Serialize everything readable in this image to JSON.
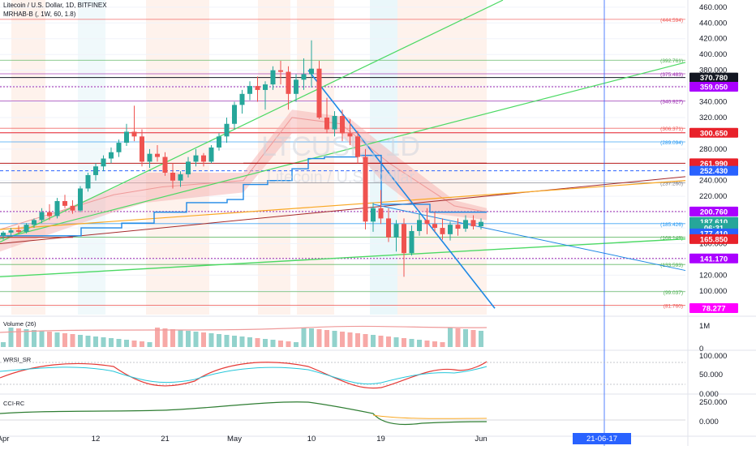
{
  "header": {
    "symbol_line": "Litecoin / U.S. Dollar, 1D, BITFINEX",
    "indicator_line": "MRHAB-B (, 1W, 60, 1.8)"
  },
  "watermark": {
    "ticker": "LTCUSD, 1D",
    "name": "Litecoin / U.S. Dollar"
  },
  "price_axis": {
    "ticks": [
      "460.000",
      "440.000",
      "420.000",
      "400.000",
      "380.000",
      "360.000",
      "340.000",
      "320.000",
      "300.000",
      "280.000",
      "260.000",
      "240.000",
      "220.000",
      "200.000",
      "180.000",
      "160.000",
      "140.000",
      "120.000",
      "100.000",
      "80.000"
    ],
    "badges": [
      {
        "text": "370.780",
        "bg": "#131722",
        "fg": "#ffffff",
        "value": 370.78
      },
      {
        "text": "359.050",
        "bg": "#aa00ff",
        "fg": "#ffffff",
        "value": 359.05
      },
      {
        "text": "300.650",
        "bg": "#e8212a",
        "fg": "#ffffff",
        "value": 300.65
      },
      {
        "text": "261.990",
        "bg": "#e8212a",
        "fg": "#ffffff",
        "value": 261.99
      },
      {
        "text": "252.430",
        "bg": "#2962ff",
        "fg": "#ffffff",
        "value": 252.43
      },
      {
        "text": "200.760",
        "bg": "#aa00ff",
        "fg": "#ffffff",
        "value": 200.76
      },
      {
        "text": "187.610",
        "bg": "#26a69a",
        "fg": "#ffffff",
        "value": 187.61
      },
      {
        "text": "06:31",
        "bg": "#26a69a",
        "fg": "#ffffff",
        "value": 180.0
      },
      {
        "text": "177.410",
        "bg": "#2962ff",
        "fg": "#ffffff",
        "value": 173.0
      },
      {
        "text": "165.850",
        "bg": "#e8212a",
        "fg": "#ffffff",
        "value": 165.85
      },
      {
        "text": "141.170",
        "bg": "#aa00ff",
        "fg": "#ffffff",
        "value": 141.17
      },
      {
        "text": "78.277",
        "bg": "#ff00ff",
        "fg": "#ffffff",
        "value": 78.277
      }
    ]
  },
  "fib_levels": [
    {
      "label": "(444.594)",
      "value": 444.594,
      "color": "#ef5350"
    },
    {
      "label": "(392.761)",
      "value": 392.761,
      "color": "#4caf50"
    },
    {
      "label": "(375.483)",
      "value": 375.483,
      "color": "#9c27b0"
    },
    {
      "label": "(340.927)",
      "value": 340.927,
      "color": "#9c27b0"
    },
    {
      "label": "(306.371)",
      "value": 306.371,
      "color": "#ef5350"
    },
    {
      "label": "(289.094)",
      "value": 289.094,
      "color": "#2196f3"
    },
    {
      "label": "(237.260)",
      "value": 237.26,
      "color": "#787b86"
    },
    {
      "label": "(185.426)",
      "value": 185.426,
      "color": "#2196f3"
    },
    {
      "label": "(168.149)",
      "value": 168.149,
      "color": "#4caf50"
    },
    {
      "label": "(133.593)",
      "value": 133.593,
      "color": "#4caf50"
    },
    {
      "label": "(99.037)",
      "value": 99.037,
      "color": "#4caf50"
    },
    {
      "label": "(81.760)",
      "value": 81.76,
      "color": "#ef5350"
    }
  ],
  "x_axis": {
    "labels": [
      {
        "text": "Apr",
        "index": 0
      },
      {
        "text": "12",
        "index": 12
      },
      {
        "text": "21",
        "index": 21
      },
      {
        "text": "May",
        "index": 30
      },
      {
        "text": "10",
        "index": 40
      },
      {
        "text": "19",
        "index": 49
      },
      {
        "text": "Jun",
        "index": 62
      }
    ],
    "crosshair_label": "21-06-17"
  },
  "panes": {
    "volume": {
      "title": "Volume (26)",
      "ticks": [
        "1M",
        "0"
      ]
    },
    "wrsi": {
      "title": "WRSI_SR",
      "ticks": [
        "100.000",
        "50.000",
        "0.000"
      ]
    },
    "cci": {
      "title": "CCI-RC",
      "ticks": [
        "250.000",
        "0.000"
      ]
    }
  },
  "chart_data": {
    "type": "candlestick",
    "symbol": "Litecoin / U.S. Dollar",
    "interval": "1D",
    "exchange": "BITFINEX",
    "ylim": [
      70,
      465
    ],
    "last_price": 187.61,
    "candles": [
      [
        170,
        176,
        165,
        174
      ],
      [
        174,
        180,
        170,
        177
      ],
      [
        177,
        183,
        172,
        175
      ],
      [
        175,
        186,
        173,
        184
      ],
      [
        184,
        192,
        180,
        190
      ],
      [
        190,
        205,
        186,
        200
      ],
      [
        200,
        210,
        190,
        195
      ],
      [
        195,
        218,
        192,
        214
      ],
      [
        214,
        222,
        205,
        208
      ],
      [
        208,
        215,
        198,
        202
      ],
      [
        202,
        233,
        200,
        230
      ],
      [
        230,
        250,
        226,
        247
      ],
      [
        247,
        262,
        240,
        258
      ],
      [
        258,
        272,
        252,
        268
      ],
      [
        268,
        282,
        262,
        276
      ],
      [
        276,
        292,
        270,
        288
      ],
      [
        288,
        312,
        284,
        302
      ],
      [
        302,
        335,
        290,
        296
      ],
      [
        296,
        305,
        258,
        264
      ],
      [
        264,
        280,
        256,
        274
      ],
      [
        274,
        285,
        264,
        270
      ],
      [
        270,
        276,
        246,
        250
      ],
      [
        250,
        262,
        230,
        240
      ],
      [
        240,
        252,
        232,
        248
      ],
      [
        248,
        270,
        244,
        264
      ],
      [
        264,
        280,
        258,
        272
      ],
      [
        272,
        275,
        258,
        264
      ],
      [
        264,
        285,
        262,
        282
      ],
      [
        282,
        300,
        278,
        296
      ],
      [
        296,
        320,
        288,
        312
      ],
      [
        312,
        340,
        305,
        336
      ],
      [
        336,
        355,
        325,
        350
      ],
      [
        350,
        366,
        342,
        360
      ],
      [
        360,
        372,
        340,
        355
      ],
      [
        355,
        366,
        330,
        362
      ],
      [
        362,
        385,
        355,
        380
      ],
      [
        380,
        392,
        362,
        378
      ],
      [
        378,
        385,
        330,
        350
      ],
      [
        350,
        375,
        340,
        368
      ],
      [
        368,
        395,
        355,
        375
      ],
      [
        375,
        418,
        358,
        382
      ],
      [
        382,
        392,
        318,
        320
      ],
      [
        320,
        345,
        300,
        305
      ],
      [
        305,
        328,
        296,
        322
      ],
      [
        322,
        330,
        290,
        300
      ],
      [
        300,
        318,
        285,
        296
      ],
      [
        296,
        303,
        262,
        270
      ],
      [
        270,
        280,
        178,
        188
      ],
      [
        188,
        212,
        175,
        205
      ],
      [
        205,
        228,
        185,
        192
      ],
      [
        192,
        205,
        162,
        168
      ],
      [
        168,
        190,
        150,
        185
      ],
      [
        185,
        192,
        118,
        148
      ],
      [
        148,
        183,
        145,
        176
      ],
      [
        176,
        198,
        170,
        190
      ],
      [
        190,
        205,
        172,
        185
      ],
      [
        185,
        200,
        175,
        180
      ],
      [
        180,
        192,
        165,
        172
      ],
      [
        172,
        188,
        164,
        184
      ],
      [
        184,
        192,
        170,
        179
      ],
      [
        179,
        196,
        175,
        190
      ],
      [
        190,
        196,
        178,
        182
      ],
      [
        182,
        192,
        178,
        187.61
      ]
    ],
    "volume_pane": {
      "ticks": [
        0,
        1000000
      ]
    },
    "wrsi_pane": {
      "ticks": [
        0,
        50,
        100
      ]
    },
    "cci_pane": {
      "ticks": [
        0,
        250
      ]
    },
    "annotations": [
      "(444.594)",
      "(392.761)",
      "(375.483)",
      "(340.927)",
      "(306.371)",
      "(289.094)",
      "(237.260)",
      "(185.426)",
      "(168.149)",
      "(133.593)",
      "(99.037)",
      "(81.760)"
    ]
  },
  "colors": {
    "up": "#26a69a",
    "down": "#ef5350",
    "ha_band_up": "#a8dfe9",
    "ha_band_down": "#f5a8a8",
    "crosshair": "#2962ff",
    "grid": "#f0f3fa"
  }
}
